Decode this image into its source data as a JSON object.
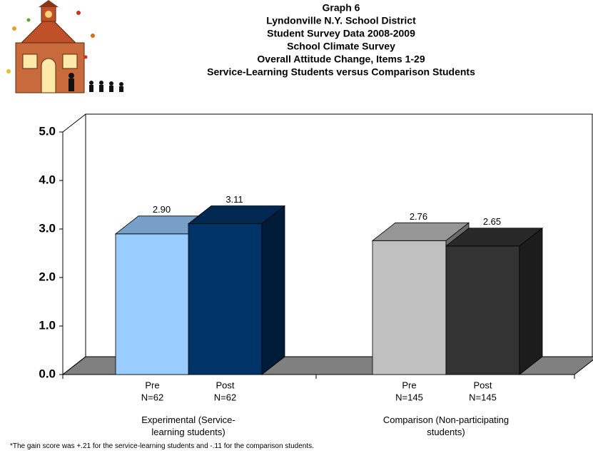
{
  "chart_data": {
    "type": "bar3d",
    "title_lines": [
      "Graph 6",
      "Lyndonville N.Y. School District",
      "Student Survey Data 2008-2009",
      "School Climate Survey",
      "Overall Attitude Change, Items 1-29",
      "Service-Learning Students versus Comparison Students"
    ],
    "categories": [
      "Pre",
      "Post",
      "Pre",
      "Post"
    ],
    "n_labels": [
      "N=62",
      "N=62",
      "N=145",
      "N=145"
    ],
    "groups": [
      "Experimental (Service-learning students)",
      "Comparison (Non-participating students)"
    ],
    "values": [
      2.9,
      3.11,
      2.76,
      2.65
    ],
    "value_labels": [
      "2.90",
      "3.11",
      "2.76",
      "2.65"
    ],
    "colors": [
      "#99ccff",
      "#003366",
      "#c0c0c0",
      "#333333"
    ],
    "ylim": [
      0,
      5
    ],
    "yticks": [
      {
        "value": 0,
        "label": "0.0"
      },
      {
        "value": 1,
        "label": "1.0"
      },
      {
        "value": 2,
        "label": "2.0"
      },
      {
        "value": 3,
        "label": "3.0"
      },
      {
        "value": 4,
        "label": "4.0"
      },
      {
        "value": 5,
        "label": "5.0"
      }
    ]
  },
  "footnote": "*The gain score was +.21 for the service-learning students and -.11 for the comparison students."
}
